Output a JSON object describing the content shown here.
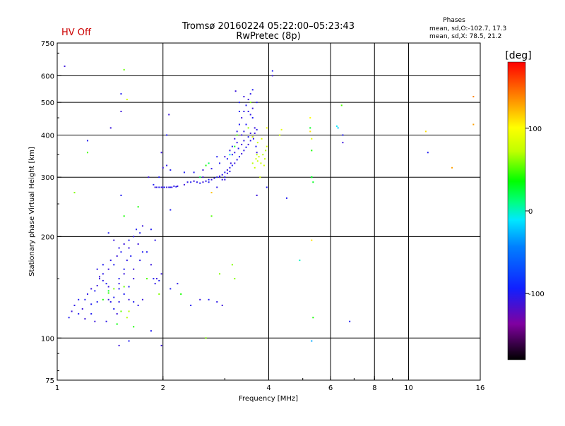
{
  "status": {
    "hv_label": "HV Off",
    "hv_color": "#cc0000"
  },
  "header": {
    "title": "Tromsø 20160224 05:22:00–05:23:43",
    "subtitle": "RwPretec (8p)"
  },
  "phases": {
    "title": "Phases",
    "line_o": "mean, sd,O:-102.7, 17.3",
    "line_x": "mean, sd,X:  78.5, 21.2"
  },
  "chart_data": {
    "type": "scatter",
    "xlabel": "Frequency [MHz]",
    "ylabel": "Stationary phase Virtual Height [km]",
    "x_scale": "log",
    "y_scale": "log",
    "xlim": [
      1,
      16
    ],
    "ylim": [
      75,
      750
    ],
    "x_ticks": [
      1,
      2,
      4,
      6,
      8,
      10,
      16
    ],
    "y_ticks": [
      75,
      100,
      200,
      300,
      400,
      500,
      600,
      750
    ],
    "x_gridlines": [
      2,
      4,
      6,
      8,
      10
    ],
    "y_gridlines": [
      100,
      200,
      300,
      400,
      500,
      600
    ],
    "grid": true,
    "colorbar": {
      "label": "[deg]",
      "min": -180,
      "max": 180,
      "ticks": [
        100,
        0,
        -100
      ]
    },
    "points": [
      [
        1.05,
        640,
        -110
      ],
      [
        1.12,
        270,
        60
      ],
      [
        1.22,
        385,
        -100
      ],
      [
        1.22,
        355,
        50
      ],
      [
        1.08,
        115,
        -100
      ],
      [
        1.1,
        120,
        -110
      ],
      [
        1.12,
        125,
        -105
      ],
      [
        1.15,
        118,
        -100
      ],
      [
        1.18,
        122,
        -110
      ],
      [
        1.2,
        130,
        -100
      ],
      [
        1.22,
        135,
        -105
      ],
      [
        1.25,
        140,
        -110
      ],
      [
        1.25,
        118,
        -100
      ],
      [
        1.28,
        112,
        -110
      ],
      [
        1.3,
        128,
        -100
      ],
      [
        1.32,
        150,
        -110
      ],
      [
        1.35,
        155,
        -105
      ],
      [
        1.35,
        130,
        40
      ],
      [
        1.38,
        145,
        -100
      ],
      [
        1.4,
        160,
        -110
      ],
      [
        1.4,
        138,
        30
      ],
      [
        1.42,
        170,
        -105
      ],
      [
        1.45,
        165,
        -100
      ],
      [
        1.45,
        140,
        60
      ],
      [
        1.48,
        175,
        -110
      ],
      [
        1.5,
        150,
        -100
      ],
      [
        1.5,
        128,
        -105
      ],
      [
        1.52,
        180,
        -100
      ],
      [
        1.55,
        190,
        -110
      ],
      [
        1.55,
        160,
        -100
      ],
      [
        1.58,
        170,
        -105
      ],
      [
        1.6,
        195,
        -100
      ],
      [
        1.6,
        185,
        -110
      ],
      [
        1.62,
        175,
        -100
      ],
      [
        1.65,
        200,
        -105
      ],
      [
        1.65,
        160,
        -110
      ],
      [
        1.68,
        210,
        -100
      ],
      [
        1.7,
        190,
        -110
      ],
      [
        1.72,
        205,
        -100
      ],
      [
        1.72,
        170,
        -105
      ],
      [
        1.75,
        215,
        -110
      ],
      [
        1.75,
        180,
        -100
      ],
      [
        1.4,
        205,
        -100
      ],
      [
        1.45,
        195,
        -110
      ],
      [
        1.5,
        185,
        -105
      ],
      [
        1.55,
        135,
        -100
      ],
      [
        1.6,
        130,
        -110
      ],
      [
        1.65,
        128,
        -100
      ],
      [
        1.7,
        125,
        -105
      ],
      [
        1.75,
        130,
        -110
      ],
      [
        1.52,
        120,
        55
      ],
      [
        1.58,
        115,
        70
      ],
      [
        1.65,
        108,
        40
      ],
      [
        1.6,
        98,
        -100
      ],
      [
        1.5,
        95,
        -110
      ],
      [
        1.55,
        230,
        40
      ],
      [
        1.7,
        245,
        40
      ],
      [
        1.52,
        265,
        -100
      ],
      [
        1.52,
        470,
        -110
      ],
      [
        1.52,
        530,
        -100
      ],
      [
        1.55,
        625,
        55
      ],
      [
        1.58,
        510,
        80
      ],
      [
        1.42,
        420,
        -110
      ],
      [
        1.8,
        180,
        -100
      ],
      [
        1.85,
        165,
        -110
      ],
      [
        1.88,
        150,
        -100
      ],
      [
        1.9,
        145,
        -105
      ],
      [
        1.92,
        150,
        -110
      ],
      [
        1.95,
        148,
        -100
      ],
      [
        1.98,
        155,
        -110
      ],
      [
        1.85,
        210,
        -100
      ],
      [
        1.9,
        195,
        -105
      ],
      [
        1.8,
        150,
        50
      ],
      [
        1.95,
        135,
        60
      ],
      [
        1.85,
        105,
        -100
      ],
      [
        1.98,
        95,
        -110
      ],
      [
        1.82,
        300,
        -110
      ],
      [
        1.88,
        285,
        -100
      ],
      [
        1.9,
        280,
        -110
      ],
      [
        1.92,
        280,
        -105
      ],
      [
        1.95,
        280,
        -100
      ],
      [
        1.98,
        280,
        -110
      ],
      [
        2.0,
        280,
        -105
      ],
      [
        2.02,
        280,
        -100
      ],
      [
        2.05,
        280,
        -110
      ],
      [
        2.08,
        280,
        -105
      ],
      [
        2.1,
        280,
        -100
      ],
      [
        2.12,
        280,
        -110
      ],
      [
        2.15,
        282,
        -105
      ],
      [
        2.18,
        281,
        -100
      ],
      [
        2.2,
        282,
        -110
      ],
      [
        1.95,
        300,
        -100
      ],
      [
        2.0,
        320,
        -110
      ],
      [
        2.05,
        325,
        -105
      ],
      [
        2.1,
        315,
        -100
      ],
      [
        1.98,
        355,
        -110
      ],
      [
        2.05,
        400,
        -100
      ],
      [
        2.08,
        460,
        -110
      ],
      [
        2.1,
        240,
        -100
      ],
      [
        2.3,
        285,
        -110
      ],
      [
        2.35,
        290,
        -105
      ],
      [
        2.4,
        290,
        -100
      ],
      [
        2.45,
        292,
        -110
      ],
      [
        2.5,
        290,
        -105
      ],
      [
        2.55,
        288,
        -100
      ],
      [
        2.6,
        290,
        -110
      ],
      [
        2.65,
        292,
        -105
      ],
      [
        2.7,
        295,
        -100
      ],
      [
        2.75,
        295,
        -110
      ],
      [
        2.8,
        298,
        -105
      ],
      [
        2.85,
        300,
        -100
      ],
      [
        2.9,
        302,
        -110
      ],
      [
        2.95,
        305,
        -105
      ],
      [
        3.0,
        310,
        -100
      ],
      [
        3.05,
        315,
        -110
      ],
      [
        3.1,
        320,
        -105
      ],
      [
        3.15,
        325,
        -100
      ],
      [
        3.2,
        330,
        -110
      ],
      [
        3.25,
        338,
        -105
      ],
      [
        3.3,
        345,
        -100
      ],
      [
        3.35,
        352,
        -110
      ],
      [
        3.4,
        360,
        -105
      ],
      [
        3.45,
        368,
        -100
      ],
      [
        3.5,
        375,
        -110
      ],
      [
        3.55,
        385,
        -105
      ],
      [
        3.6,
        395,
        -100
      ],
      [
        3.65,
        405,
        -110
      ],
      [
        3.7,
        415,
        -105
      ],
      [
        2.45,
        310,
        -100
      ],
      [
        2.6,
        315,
        -110
      ],
      [
        2.75,
        318,
        -105
      ],
      [
        2.9,
        330,
        -100
      ],
      [
        3.0,
        345,
        -110
      ],
      [
        3.1,
        360,
        -105
      ],
      [
        3.15,
        370,
        -100
      ],
      [
        3.2,
        390,
        -110
      ],
      [
        3.25,
        410,
        -105
      ],
      [
        3.3,
        430,
        -100
      ],
      [
        3.35,
        450,
        -110
      ],
      [
        3.4,
        470,
        -105
      ],
      [
        3.45,
        490,
        -100
      ],
      [
        3.5,
        510,
        -110
      ],
      [
        3.55,
        530,
        -105
      ],
      [
        3.6,
        545,
        -100
      ],
      [
        3.22,
        540,
        -110
      ],
      [
        3.3,
        500,
        -100
      ],
      [
        3.4,
        520,
        -110
      ],
      [
        3.5,
        470,
        -105
      ],
      [
        3.6,
        450,
        -100
      ],
      [
        3.65,
        420,
        -110
      ],
      [
        3.15,
        350,
        -100
      ],
      [
        3.25,
        380,
        -105
      ],
      [
        3.35,
        400,
        -110
      ],
      [
        3.45,
        430,
        -100
      ],
      [
        3.55,
        460,
        -105
      ],
      [
        3.6,
        480,
        -110
      ],
      [
        3.7,
        500,
        -100
      ],
      [
        2.9,
        300,
        -110
      ],
      [
        2.95,
        295,
        -105
      ],
      [
        3.0,
        300,
        -100
      ],
      [
        3.05,
        308,
        -110
      ],
      [
        3.1,
        312,
        -105
      ],
      [
        3.05,
        340,
        -100
      ],
      [
        3.12,
        330,
        -110
      ],
      [
        3.2,
        355,
        -105
      ],
      [
        3.28,
        365,
        -100
      ],
      [
        3.35,
        375,
        -110
      ],
      [
        3.4,
        385,
        -105
      ],
      [
        3.5,
        395,
        -100
      ],
      [
        3.55,
        405,
        -110
      ],
      [
        3.62,
        390,
        -105
      ],
      [
        3.68,
        370,
        -100
      ],
      [
        3.7,
        355,
        -110
      ],
      [
        3.6,
        330,
        70
      ],
      [
        3.65,
        320,
        75
      ],
      [
        3.68,
        340,
        80
      ],
      [
        3.7,
        350,
        70
      ],
      [
        3.72,
        335,
        75
      ],
      [
        3.75,
        345,
        80
      ],
      [
        3.8,
        330,
        75
      ],
      [
        3.85,
        350,
        70
      ],
      [
        3.88,
        325,
        80
      ],
      [
        3.9,
        340,
        75
      ],
      [
        3.92,
        360,
        70
      ],
      [
        3.95,
        370,
        80
      ],
      [
        3.72,
        380,
        75
      ],
      [
        3.78,
        300,
        80
      ],
      [
        3.82,
        390,
        85
      ],
      [
        3.95,
        420,
        95
      ],
      [
        2.7,
        290,
        -100
      ],
      [
        2.85,
        280,
        -105
      ],
      [
        3.0,
        295,
        -110
      ],
      [
        2.6,
        300,
        -110
      ],
      [
        2.3,
        310,
        -100
      ],
      [
        2.65,
        325,
        40
      ],
      [
        2.7,
        330,
        20
      ],
      [
        3.1,
        350,
        -10
      ],
      [
        3.2,
        370,
        30
      ],
      [
        3.25,
        400,
        50
      ],
      [
        3.6,
        395,
        90
      ],
      [
        3.55,
        500,
        60
      ],
      [
        3.5,
        420,
        65
      ],
      [
        3.3,
        470,
        -100
      ],
      [
        3.4,
        410,
        -105
      ],
      [
        2.85,
        345,
        -100
      ],
      [
        2.55,
        300,
        20
      ],
      [
        2.25,
        135,
        40
      ],
      [
        2.4,
        125,
        -100
      ],
      [
        2.55,
        130,
        -110
      ],
      [
        2.7,
        130,
        -100
      ],
      [
        2.85,
        128,
        -105
      ],
      [
        2.95,
        125,
        -110
      ],
      [
        2.65,
        100,
        60
      ],
      [
        2.75,
        230,
        50
      ],
      [
        2.75,
        270,
        120
      ],
      [
        2.9,
        155,
        60
      ],
      [
        3.15,
        165,
        60
      ],
      [
        3.2,
        150,
        60
      ],
      [
        3.7,
        265,
        -110
      ],
      [
        3.95,
        280,
        -100
      ],
      [
        4.1,
        620,
        -100
      ],
      [
        4.1,
        600,
        -110
      ],
      [
        4.3,
        400,
        80
      ],
      [
        4.35,
        415,
        90
      ],
      [
        4.5,
        260,
        -100
      ],
      [
        4.9,
        170,
        0
      ],
      [
        5.25,
        450,
        100
      ],
      [
        5.25,
        410,
        110
      ],
      [
        5.3,
        390,
        90
      ],
      [
        5.3,
        360,
        40
      ],
      [
        5.25,
        420,
        30
      ],
      [
        5.3,
        300,
        40
      ],
      [
        5.35,
        290,
        30
      ],
      [
        5.3,
        300,
        20
      ],
      [
        5.3,
        195,
        110
      ],
      [
        5.35,
        115,
        40
      ],
      [
        5.3,
        98,
        -30
      ],
      [
        5.3,
        300,
        30
      ],
      [
        6.25,
        425,
        -10
      ],
      [
        6.3,
        420,
        -20
      ],
      [
        6.45,
        490,
        50
      ],
      [
        6.5,
        400,
        -100
      ],
      [
        6.5,
        380,
        -110
      ],
      [
        6.8,
        112,
        -100
      ],
      [
        11.2,
        410,
        110
      ],
      [
        11.35,
        355,
        -100
      ],
      [
        13.3,
        320,
        130
      ],
      [
        15.3,
        520,
        140
      ],
      [
        15.3,
        430,
        130
      ],
      [
        2.1,
        140,
        -100
      ],
      [
        2.2,
        145,
        -105
      ],
      [
        1.4,
        142,
        -110
      ],
      [
        1.5,
        140,
        -100
      ],
      [
        1.35,
        148,
        -105
      ],
      [
        1.3,
        143,
        -110
      ],
      [
        1.28,
        138,
        -100
      ],
      [
        1.32,
        152,
        -110
      ],
      [
        1.3,
        160,
        -105
      ],
      [
        1.35,
        165,
        -100
      ],
      [
        1.4,
        130,
        -110
      ],
      [
        1.45,
        132,
        -100
      ],
      [
        1.5,
        145,
        -105
      ],
      [
        1.55,
        155,
        -110
      ],
      [
        1.6,
        142,
        -100
      ],
      [
        1.65,
        150,
        -110
      ],
      [
        1.42,
        128,
        -105
      ],
      [
        1.45,
        122,
        -100
      ],
      [
        1.48,
        118,
        -110
      ],
      [
        1.38,
        112,
        -105
      ],
      [
        1.25,
        126,
        -100
      ],
      [
        1.2,
        114,
        -110
      ],
      [
        1.15,
        130,
        -100
      ],
      [
        1.4,
        136,
        45
      ],
      [
        1.55,
        142,
        55
      ],
      [
        1.6,
        120,
        70
      ],
      [
        1.48,
        110,
        35
      ]
    ]
  }
}
